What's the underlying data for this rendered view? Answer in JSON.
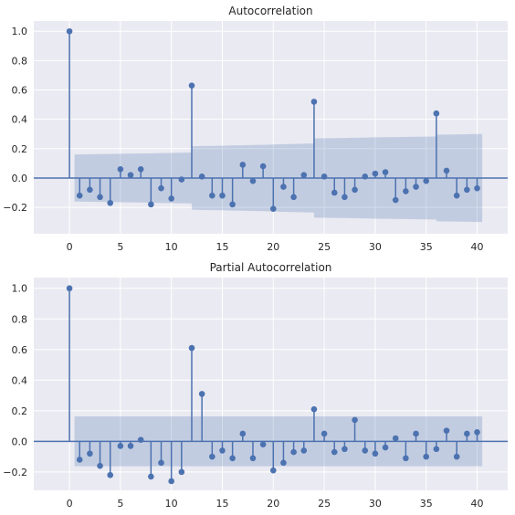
{
  "colors": {
    "series": "#4c72b0",
    "band": "#4c72b0",
    "background": "#eaeaf2",
    "grid": "#ffffff"
  },
  "chart_data": [
    {
      "type": "stem",
      "title": "Autocorrelation",
      "xlabel": "",
      "ylabel": "",
      "xlim": [
        -3.5,
        43
      ],
      "ylim": [
        -0.38,
        1.07
      ],
      "x_ticks": [
        0,
        5,
        10,
        15,
        20,
        25,
        30,
        35,
        40
      ],
      "y_ticks": [
        -0.2,
        0.0,
        0.2,
        0.4,
        0.6,
        0.8,
        1.0
      ],
      "y_tick_labels": [
        "−0.2",
        "0.0",
        "0.2",
        "0.4",
        "0.6",
        "0.8",
        "1.0"
      ],
      "grid": true,
      "lags": [
        0,
        1,
        2,
        3,
        4,
        5,
        6,
        7,
        8,
        9,
        10,
        11,
        12,
        13,
        14,
        15,
        16,
        17,
        18,
        19,
        20,
        21,
        22,
        23,
        24,
        25,
        26,
        27,
        28,
        29,
        30,
        31,
        32,
        33,
        34,
        35,
        36,
        37,
        38,
        39,
        40
      ],
      "values": [
        1.0,
        -0.12,
        -0.08,
        -0.13,
        -0.17,
        0.06,
        0.02,
        0.06,
        -0.18,
        -0.07,
        -0.14,
        -0.01,
        0.63,
        0.01,
        -0.12,
        -0.12,
        -0.18,
        0.09,
        -0.02,
        0.08,
        -0.21,
        -0.06,
        -0.13,
        0.02,
        0.52,
        0.01,
        -0.1,
        -0.13,
        -0.08,
        0.01,
        0.03,
        0.04,
        -0.15,
        -0.09,
        -0.06,
        -0.02,
        0.44,
        0.05,
        -0.12,
        -0.08,
        -0.07
      ],
      "confidence_band": {
        "x": [
          0.5,
          1,
          2,
          3,
          4,
          5,
          6,
          7,
          8,
          9,
          10,
          11,
          11.99,
          12.01,
          13,
          14,
          15,
          16,
          17,
          18,
          19,
          20,
          21,
          22,
          23,
          23.99,
          24.01,
          25,
          26,
          27,
          28,
          29,
          30,
          31,
          32,
          33,
          34,
          35,
          35.99,
          36.01,
          37,
          38,
          39,
          40,
          40.5
        ],
        "upper": [
          0.161,
          0.161,
          0.162,
          0.163,
          0.164,
          0.165,
          0.166,
          0.167,
          0.168,
          0.17,
          0.171,
          0.172,
          0.173,
          0.216,
          0.218,
          0.219,
          0.22,
          0.222,
          0.223,
          0.225,
          0.226,
          0.228,
          0.231,
          0.232,
          0.234,
          0.235,
          0.27,
          0.271,
          0.272,
          0.273,
          0.274,
          0.275,
          0.277,
          0.278,
          0.279,
          0.28,
          0.281,
          0.282,
          0.283,
          0.295,
          0.296,
          0.297,
          0.298,
          0.3,
          0.3
        ]
      }
    },
    {
      "type": "stem",
      "title": "Partial Autocorrelation",
      "xlabel": "",
      "ylabel": "",
      "xlim": [
        -3.5,
        43
      ],
      "ylim": [
        -0.32,
        1.07
      ],
      "x_ticks": [
        0,
        5,
        10,
        15,
        20,
        25,
        30,
        35,
        40
      ],
      "y_ticks": [
        -0.2,
        0.0,
        0.2,
        0.4,
        0.6,
        0.8,
        1.0
      ],
      "y_tick_labels": [
        "−0.2",
        "0.0",
        "0.2",
        "0.4",
        "0.6",
        "0.8",
        "1.0"
      ],
      "grid": true,
      "lags": [
        0,
        1,
        2,
        3,
        4,
        5,
        6,
        7,
        8,
        9,
        10,
        11,
        12,
        13,
        14,
        15,
        16,
        17,
        18,
        19,
        20,
        21,
        22,
        23,
        24,
        25,
        26,
        27,
        28,
        29,
        30,
        31,
        32,
        33,
        34,
        35,
        36,
        37,
        38,
        39,
        40
      ],
      "values": [
        1.0,
        -0.12,
        -0.08,
        -0.16,
        -0.22,
        -0.03,
        -0.03,
        0.01,
        -0.23,
        -0.14,
        -0.26,
        -0.2,
        0.61,
        0.31,
        -0.1,
        -0.06,
        -0.11,
        0.05,
        -0.11,
        -0.02,
        -0.19,
        -0.14,
        -0.07,
        -0.06,
        0.21,
        0.05,
        -0.07,
        -0.05,
        0.14,
        -0.06,
        -0.08,
        -0.04,
        0.02,
        -0.11,
        0.05,
        -0.1,
        -0.05,
        0.07,
        -0.1,
        0.05,
        0.06
      ],
      "confidence_band": {
        "x": [
          0.5,
          40.5
        ],
        "upper": [
          0.163,
          0.163
        ]
      }
    }
  ]
}
